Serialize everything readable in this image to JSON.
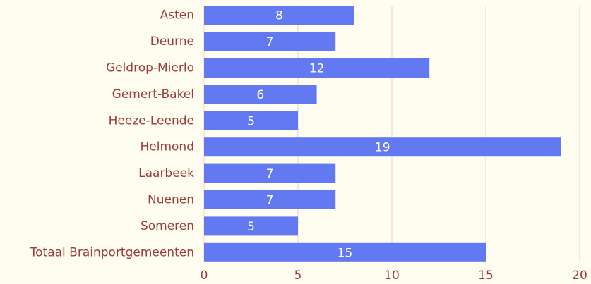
{
  "chart_data": {
    "type": "barh",
    "categories": [
      "Asten",
      "Deurne",
      "Geldrop-Mierlo",
      "Gemert-Bakel",
      "Heeze-Leende",
      "Helmond",
      "Laarbeek",
      "Nuenen",
      "Someren",
      "Totaal Brainportgemeenten"
    ],
    "values": [
      8,
      7,
      12,
      6,
      5,
      19,
      7,
      7,
      5,
      15
    ],
    "color": "#6379f2",
    "xlim": [
      0,
      20
    ],
    "xticks": [
      0,
      5,
      10,
      15,
      20
    ],
    "grid": true
  }
}
